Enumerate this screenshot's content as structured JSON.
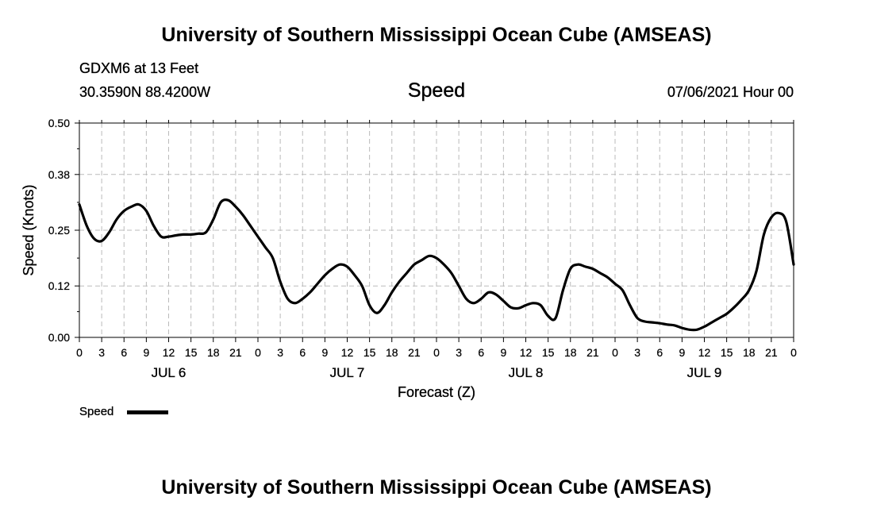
{
  "header": {
    "title": "University of Southern Mississippi Ocean Cube (AMSEAS)",
    "station": "GDXM6 at 13 Feet",
    "coords": "30.3590N  88.4200W",
    "variable": "Speed",
    "datetime": "07/06/2021 Hour 00"
  },
  "footer": {
    "title": "University of Southern Mississippi Ocean Cube (AMSEAS)"
  },
  "legend": {
    "label": "Speed",
    "color": "#000000"
  },
  "chart_data": {
    "type": "line",
    "xlabel": "Forecast (Z)",
    "ylabel": "Speed (Knots)",
    "ylim": [
      0,
      0.5
    ],
    "xlim": [
      0,
      96
    ],
    "grid": true,
    "y_ticks": [
      "0.00",
      "0.12",
      "0.25",
      "0.38",
      "0.50"
    ],
    "x_tick_labels": [
      "0",
      "3",
      "6",
      "9",
      "12",
      "15",
      "18",
      "21",
      "0",
      "3",
      "6",
      "9",
      "12",
      "15",
      "18",
      "21",
      "0",
      "3",
      "6",
      "9",
      "12",
      "15",
      "18",
      "21",
      "0",
      "3",
      "6",
      "9",
      "12",
      "15",
      "18",
      "21",
      "0"
    ],
    "day_labels": [
      {
        "label": "JUL 6",
        "hour": 12
      },
      {
        "label": "JUL 7",
        "hour": 36
      },
      {
        "label": "JUL 8",
        "hour": 60
      },
      {
        "label": "JUL 9",
        "hour": 84
      }
    ],
    "series": [
      {
        "name": "Speed",
        "color": "#000000",
        "x": [
          0,
          1,
          2,
          3,
          4,
          5,
          6,
          7,
          8,
          9,
          10,
          11,
          12,
          13,
          14,
          15,
          16,
          17,
          18,
          19,
          20,
          21,
          22,
          23,
          24,
          25,
          26,
          27,
          28,
          29,
          30,
          31,
          32,
          33,
          34,
          35,
          36,
          37,
          38,
          39,
          40,
          41,
          42,
          43,
          44,
          45,
          46,
          47,
          48,
          49,
          50,
          51,
          52,
          53,
          54,
          55,
          56,
          57,
          58,
          59,
          60,
          61,
          62,
          63,
          64,
          65,
          66,
          67,
          68,
          69,
          70,
          71,
          72,
          73,
          74,
          75,
          76,
          77,
          78,
          79,
          80,
          81,
          82,
          83,
          84,
          85,
          86,
          87,
          88,
          89,
          90,
          91,
          92,
          93,
          94,
          95,
          96
        ],
        "values": [
          0.31,
          0.26,
          0.23,
          0.225,
          0.245,
          0.275,
          0.295,
          0.305,
          0.31,
          0.295,
          0.26,
          0.235,
          0.235,
          0.238,
          0.24,
          0.24,
          0.242,
          0.245,
          0.275,
          0.315,
          0.32,
          0.305,
          0.285,
          0.26,
          0.235,
          0.21,
          0.185,
          0.13,
          0.09,
          0.08,
          0.09,
          0.105,
          0.125,
          0.145,
          0.16,
          0.17,
          0.165,
          0.145,
          0.12,
          0.075,
          0.057,
          0.075,
          0.105,
          0.13,
          0.15,
          0.17,
          0.18,
          0.19,
          0.185,
          0.17,
          0.15,
          0.12,
          0.09,
          0.08,
          0.09,
          0.105,
          0.1,
          0.085,
          0.07,
          0.068,
          0.075,
          0.08,
          0.075,
          0.05,
          0.045,
          0.11,
          0.16,
          0.17,
          0.165,
          0.16,
          0.15,
          0.14,
          0.125,
          0.11,
          0.075,
          0.045,
          0.037,
          0.035,
          0.033,
          0.03,
          0.028,
          0.022,
          0.018,
          0.018,
          0.025,
          0.035,
          0.045,
          0.055,
          0.07,
          0.088,
          0.11,
          0.155,
          0.24,
          0.28,
          0.29,
          0.27,
          0.17
        ]
      }
    ]
  }
}
